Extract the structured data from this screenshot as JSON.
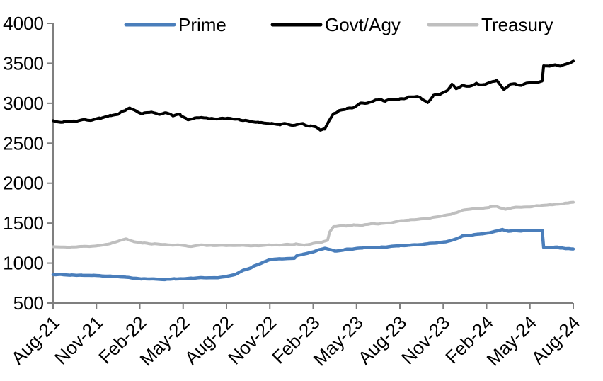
{
  "chart_data": {
    "type": "line",
    "title": "",
    "xlabel": "",
    "ylabel": "",
    "grid": false,
    "legend_position": "top",
    "axis_color": "#7f7f7f",
    "text_color": "#000000",
    "x_axis": {
      "tick_labels": [
        "Aug-21",
        "Nov-21",
        "Feb-22",
        "May-22",
        "Aug-22",
        "Nov-22",
        "Feb-23",
        "May-23",
        "Aug-23",
        "Nov-23",
        "Feb-24",
        "May-24",
        "Aug-24"
      ],
      "tick_months": [
        0,
        3,
        6,
        9,
        12,
        15,
        18,
        21,
        24,
        27,
        30,
        33,
        36
      ],
      "range_months": [
        0,
        36
      ]
    },
    "y_axis": {
      "min": 500,
      "max": 4000,
      "step": 500,
      "ticks": [
        500,
        1000,
        1500,
        2000,
        2500,
        3000,
        3500,
        4000
      ]
    },
    "series": [
      {
        "name": "Treasury",
        "color": "#bfbfbf",
        "stroke_width": 4,
        "noise": 6,
        "seed": 11,
        "anchors": [
          [
            0,
            1205
          ],
          [
            1,
            1198
          ],
          [
            2,
            1208
          ],
          [
            3,
            1216
          ],
          [
            4,
            1242
          ],
          [
            4.8,
            1295
          ],
          [
            5.1,
            1300
          ],
          [
            5.6,
            1268
          ],
          [
            6.2,
            1250
          ],
          [
            7,
            1242
          ],
          [
            8,
            1230
          ],
          [
            9,
            1222
          ],
          [
            9.6,
            1208
          ],
          [
            10.2,
            1228
          ],
          [
            11,
            1222
          ],
          [
            12,
            1218
          ],
          [
            13,
            1224
          ],
          [
            14,
            1218
          ],
          [
            15,
            1224
          ],
          [
            16,
            1230
          ],
          [
            16.8,
            1238
          ],
          [
            17.4,
            1224
          ],
          [
            18,
            1248
          ],
          [
            18.6,
            1262
          ],
          [
            19,
            1290
          ],
          [
            19.15,
            1395
          ],
          [
            19.4,
            1452
          ],
          [
            19.8,
            1468
          ],
          [
            20.3,
            1462
          ],
          [
            20.8,
            1480
          ],
          [
            21.4,
            1474
          ],
          [
            22,
            1488
          ],
          [
            22.7,
            1496
          ],
          [
            23.4,
            1508
          ],
          [
            24,
            1530
          ],
          [
            24.7,
            1540
          ],
          [
            25.4,
            1552
          ],
          [
            26,
            1565
          ],
          [
            26.6,
            1580
          ],
          [
            27.2,
            1598
          ],
          [
            27.8,
            1628
          ],
          [
            28.3,
            1660
          ],
          [
            29,
            1676
          ],
          [
            29.6,
            1686
          ],
          [
            30.2,
            1700
          ],
          [
            30.7,
            1708
          ],
          [
            31.3,
            1672
          ],
          [
            31.8,
            1692
          ],
          [
            32.4,
            1700
          ],
          [
            33,
            1708
          ],
          [
            33.6,
            1718
          ],
          [
            34.2,
            1728
          ],
          [
            34.8,
            1738
          ],
          [
            35.4,
            1748
          ],
          [
            36,
            1760
          ]
        ]
      },
      {
        "name": "Prime",
        "color": "#4a7ebb",
        "stroke_width": 4.5,
        "noise": 5,
        "seed": 7,
        "anchors": [
          [
            0,
            860
          ],
          [
            0.6,
            856
          ],
          [
            1.2,
            850
          ],
          [
            2,
            849
          ],
          [
            2.8,
            846
          ],
          [
            3.5,
            841
          ],
          [
            4.2,
            833
          ],
          [
            5,
            821
          ],
          [
            5.6,
            813
          ],
          [
            6.2,
            805
          ],
          [
            7,
            799
          ],
          [
            7.8,
            797
          ],
          [
            8.4,
            805
          ],
          [
            9,
            801
          ],
          [
            9.6,
            811
          ],
          [
            10.2,
            815
          ],
          [
            10.8,
            812
          ],
          [
            11.4,
            819
          ],
          [
            12,
            830
          ],
          [
            12.6,
            856
          ],
          [
            13.2,
            914
          ],
          [
            13.8,
            952
          ],
          [
            14.4,
            1000
          ],
          [
            15,
            1040
          ],
          [
            15.6,
            1052
          ],
          [
            16.2,
            1055
          ],
          [
            16.7,
            1063
          ],
          [
            16.85,
            1090
          ],
          [
            17.3,
            1108
          ],
          [
            17.8,
            1130
          ],
          [
            18.3,
            1160
          ],
          [
            18.8,
            1186
          ],
          [
            19.2,
            1170
          ],
          [
            19.5,
            1153
          ],
          [
            20.1,
            1167
          ],
          [
            20.8,
            1180
          ],
          [
            21.4,
            1190
          ],
          [
            22,
            1196
          ],
          [
            22.7,
            1200
          ],
          [
            23.4,
            1207
          ],
          [
            24,
            1218
          ],
          [
            24.7,
            1224
          ],
          [
            25.4,
            1232
          ],
          [
            26,
            1242
          ],
          [
            26.6,
            1252
          ],
          [
            27.2,
            1268
          ],
          [
            27.7,
            1290
          ],
          [
            28.3,
            1336
          ],
          [
            29,
            1352
          ],
          [
            29.6,
            1362
          ],
          [
            30.2,
            1380
          ],
          [
            30.7,
            1400
          ],
          [
            31.1,
            1420
          ],
          [
            31.5,
            1398
          ],
          [
            31.9,
            1410
          ],
          [
            32.4,
            1400
          ],
          [
            32.9,
            1412
          ],
          [
            33.4,
            1404
          ],
          [
            33.85,
            1408
          ],
          [
            33.95,
            1198
          ],
          [
            34.4,
            1192
          ],
          [
            34.9,
            1197
          ],
          [
            35.3,
            1188
          ],
          [
            35.7,
            1181
          ],
          [
            36,
            1178
          ]
        ]
      },
      {
        "name": "Govt/Agy",
        "color": "#000000",
        "stroke_width": 4,
        "noise": 13,
        "seed": 3,
        "anchors": [
          [
            0,
            2780
          ],
          [
            0.7,
            2765
          ],
          [
            1.2,
            2778
          ],
          [
            2,
            2790
          ],
          [
            2.6,
            2785
          ],
          [
            3.2,
            2812
          ],
          [
            4,
            2842
          ],
          [
            4.5,
            2868
          ],
          [
            5,
            2922
          ],
          [
            5.3,
            2935
          ],
          [
            5.8,
            2895
          ],
          [
            6.2,
            2872
          ],
          [
            6.8,
            2890
          ],
          [
            7.3,
            2856
          ],
          [
            7.8,
            2880
          ],
          [
            8.3,
            2836
          ],
          [
            8.8,
            2862
          ],
          [
            9.3,
            2792
          ],
          [
            9.8,
            2816
          ],
          [
            10.3,
            2822
          ],
          [
            10.8,
            2802
          ],
          [
            11.5,
            2812
          ],
          [
            12,
            2802
          ],
          [
            12.8,
            2792
          ],
          [
            13.5,
            2776
          ],
          [
            14.2,
            2762
          ],
          [
            15,
            2748
          ],
          [
            15.7,
            2736
          ],
          [
            16.2,
            2746
          ],
          [
            16.8,
            2726
          ],
          [
            17.3,
            2742
          ],
          [
            17.8,
            2716
          ],
          [
            18.2,
            2700
          ],
          [
            18.5,
            2662
          ],
          [
            18.8,
            2682
          ],
          [
            19.1,
            2782
          ],
          [
            19.4,
            2872
          ],
          [
            19.8,
            2906
          ],
          [
            20.3,
            2930
          ],
          [
            20.8,
            2956
          ],
          [
            21.3,
            2996
          ],
          [
            21.8,
            3012
          ],
          [
            22.3,
            3046
          ],
          [
            22.6,
            3056
          ],
          [
            23,
            3020
          ],
          [
            23.4,
            3048
          ],
          [
            24,
            3058
          ],
          [
            24.6,
            3076
          ],
          [
            25.2,
            3090
          ],
          [
            25.9,
            3012
          ],
          [
            26.3,
            3096
          ],
          [
            26.8,
            3112
          ],
          [
            27.3,
            3152
          ],
          [
            27.6,
            3240
          ],
          [
            27.9,
            3176
          ],
          [
            28.3,
            3230
          ],
          [
            28.8,
            3206
          ],
          [
            29.3,
            3246
          ],
          [
            29.8,
            3226
          ],
          [
            30.3,
            3262
          ],
          [
            30.7,
            3286
          ],
          [
            31.2,
            3172
          ],
          [
            31.6,
            3226
          ],
          [
            32,
            3240
          ],
          [
            32.5,
            3232
          ],
          [
            33,
            3256
          ],
          [
            33.5,
            3262
          ],
          [
            33.85,
            3272
          ],
          [
            33.95,
            3470
          ],
          [
            34.4,
            3462
          ],
          [
            34.8,
            3478
          ],
          [
            35.2,
            3472
          ],
          [
            35.6,
            3496
          ],
          [
            36,
            3520
          ]
        ]
      }
    ],
    "legend": {
      "entries": [
        {
          "label": "Prime",
          "color": "#4a7ebb"
        },
        {
          "label": "Govt/Agy",
          "color": "#000000"
        },
        {
          "label": "Treasury",
          "color": "#bfbfbf"
        }
      ]
    }
  }
}
